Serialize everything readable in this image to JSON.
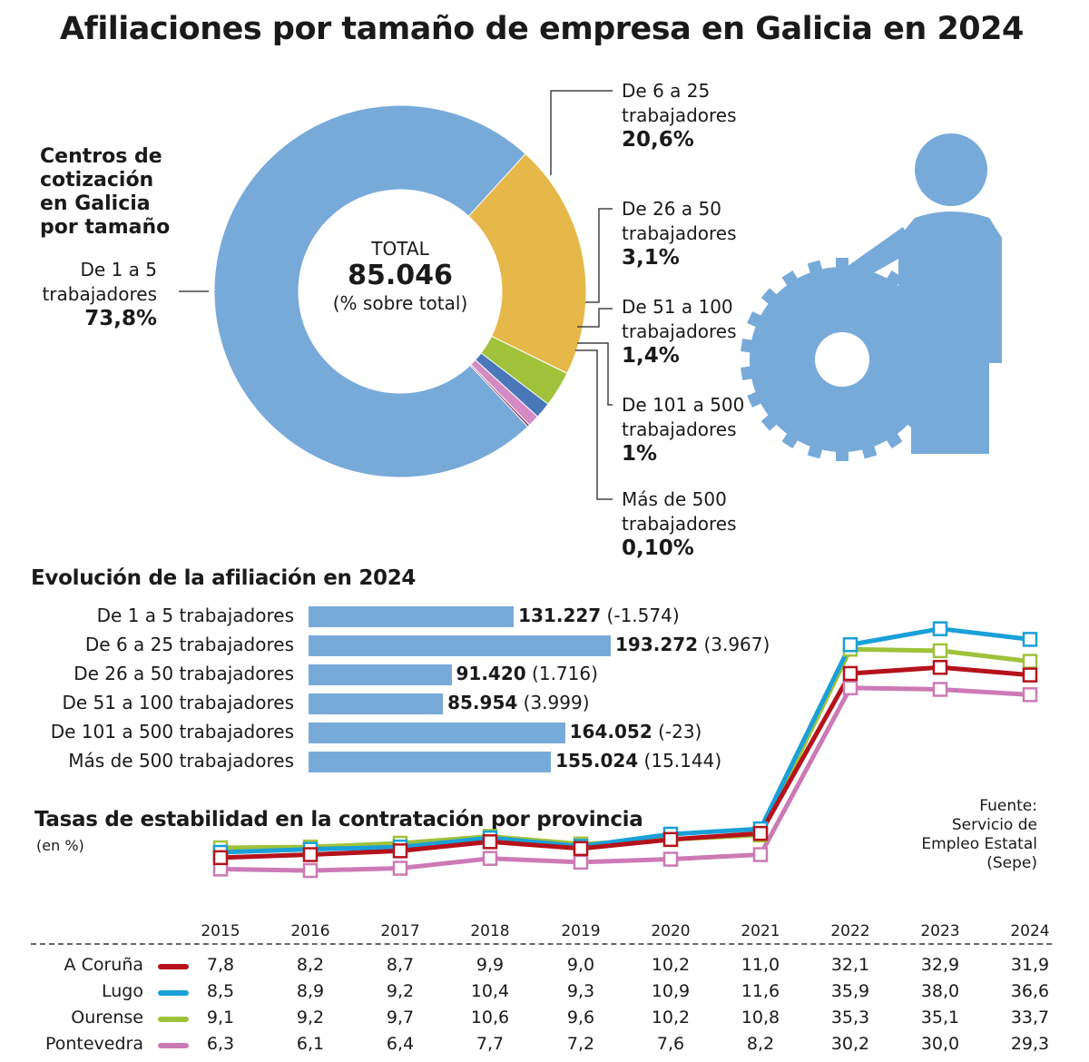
{
  "title": "Afiliaciones por tamaño de empresa en Galicia en 2024",
  "donut": {
    "side_title": [
      "Centros de",
      "cotización",
      "en Galicia",
      "por tamaño"
    ],
    "center": {
      "label": "TOTAL",
      "value": "85.046",
      "note": "(% sobre total)"
    },
    "segments": [
      {
        "name_lines": [
          "De 1 a 5",
          "trabajadores"
        ],
        "pct_label": "73,8%",
        "value": 73.8,
        "color": "#78aad9"
      },
      {
        "name_lines": [
          "De 6 a 25",
          "trabajadores"
        ],
        "pct_label": "20,6%",
        "value": 20.6,
        "color": "#e6b84a"
      },
      {
        "name_lines": [
          "De 26 a 50",
          "trabajadores"
        ],
        "pct_label": "3,1%",
        "value": 3.1,
        "color": "#9fc23a"
      },
      {
        "name_lines": [
          "De 51 a 100",
          "trabajadores"
        ],
        "pct_label": "1,4%",
        "value": 1.4,
        "color": "#4a77b8"
      },
      {
        "name_lines": [
          "De 101 a 500",
          "trabajadores"
        ],
        "pct_label": "1%",
        "value": 1.0,
        "color": "#d48ac2"
      },
      {
        "name_lines": [
          "Más de 500",
          "trabajadores"
        ],
        "pct_label": "0,10%",
        "value": 0.1,
        "color": "#8b1f45"
      }
    ]
  },
  "bars": {
    "title": "Evolución de la afiliación en 2024",
    "items": [
      {
        "label": "De 1 a 5 trabajadores",
        "value": 131227,
        "value_label": "131.227",
        "change": "(-1.574)"
      },
      {
        "label": "De 6 a 25 trabajadores",
        "value": 193272,
        "value_label": "193.272",
        "change": "(3.967)"
      },
      {
        "label": "De 26 a 50 trabajadores",
        "value": 91420,
        "value_label": "91.420",
        "change": "(1.716)"
      },
      {
        "label": "De 51 a 100 trabajadores",
        "value": 85954,
        "value_label": "85.954",
        "change": "(3.999)"
      },
      {
        "label": "De 101 a 500 trabajadores",
        "value": 164052,
        "value_label": "164.052",
        "change": "(-23)"
      },
      {
        "label": "Más de 500 trabajadores",
        "value": 155024,
        "value_label": "155.024",
        "change": "(15.144)"
      }
    ]
  },
  "chart_data": {
    "type": "line",
    "title": "Tasas de estabilidad en la contratación por provincia",
    "subtitle": "(en %)",
    "x": [
      "2015",
      "2016",
      "2017",
      "2018",
      "2019",
      "2020",
      "2021",
      "2022",
      "2023",
      "2024"
    ],
    "series": [
      {
        "name": "A Coruña",
        "color": "#b5121b",
        "values": [
          7.8,
          8.2,
          8.7,
          9.9,
          9.0,
          10.2,
          11.0,
          32.1,
          32.9,
          31.9
        ],
        "labels": [
          "7,8",
          "8,2",
          "8,7",
          "9,9",
          "9,0",
          "10,2",
          "11,0",
          "32,1",
          "32,9",
          "31,9"
        ]
      },
      {
        "name": "Lugo",
        "color": "#1aa0d8",
        "values": [
          8.5,
          8.9,
          9.2,
          10.4,
          9.3,
          10.9,
          11.6,
          35.9,
          38.0,
          36.6
        ],
        "labels": [
          "8,5",
          "8,9",
          "9,2",
          "10,4",
          "9,3",
          "10,9",
          "11,6",
          "35,9",
          "38,0",
          "36,6"
        ]
      },
      {
        "name": "Ourense",
        "color": "#9fc23a",
        "values": [
          9.1,
          9.2,
          9.7,
          10.6,
          9.6,
          10.2,
          10.8,
          35.3,
          35.1,
          33.7
        ],
        "labels": [
          "9,1",
          "9,2",
          "9,7",
          "10,6",
          "9,6",
          "10,2",
          "10,8",
          "35,3",
          "35,1",
          "33,7"
        ]
      },
      {
        "name": "Pontevedra",
        "color": "#cc7ab5",
        "values": [
          6.3,
          6.1,
          6.4,
          7.7,
          7.2,
          7.6,
          8.2,
          30.2,
          30.0,
          29.3
        ],
        "labels": [
          "6,3",
          "6,1",
          "6,4",
          "7,7",
          "7,2",
          "7,6",
          "8,2",
          "30,2",
          "30,0",
          "29,3"
        ]
      }
    ]
  },
  "source": [
    "Fuente:",
    "Servicio de",
    "Empleo Estatal",
    "(Sepe)"
  ],
  "icon": {
    "name": "worker-with-gear-icon",
    "color": "#78aad9"
  }
}
